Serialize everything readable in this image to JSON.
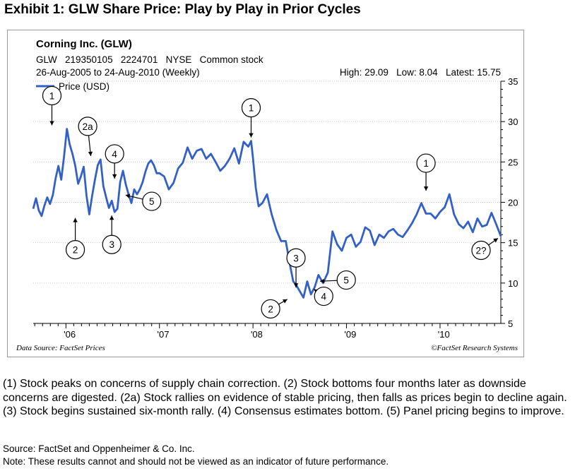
{
  "header": {
    "title": "Exhibit 1: GLW Share Price: Play by Play in Prior Cycles"
  },
  "chart_info": {
    "company": "Corning Inc. (GLW)",
    "details": "GLW   219350105   2224701   NYSE   Common stock",
    "period": "26-Aug-2005 to 24-Aug-2010 (Weekly)",
    "stats": "High: 29.09   Low: 8.04   Latest: 15.75",
    "data_source": "Data Source: FactSet Prices",
    "copyright": "©FactSet Research Systems"
  },
  "description": "(1) Stock peaks on concerns of supply chain correction. (2) Stock bottoms four months later as downside concerns are digested. (2a) Stock rallies on evidence of stable pricing, then falls as prices begin to decline again. (3) Stock begins sustained six-month rally. (4) Consensus estimates bottom. (5) Panel pricing begins to improve.",
  "footer": {
    "source": "Source: FactSet and Oppenheimer & Co. Inc.",
    "note": "Note: These results cannot and should not be viewed as an indicator of future performance."
  },
  "colors": {
    "series": "#3360c8",
    "grid": "#c8c8c8",
    "axis": "#000000"
  },
  "chart_data": {
    "type": "line",
    "grid": "horizontal dotted",
    "legend_position": "top-left",
    "ylim": [
      5,
      35
    ],
    "xlim": [
      2005.65,
      2010.65
    ],
    "y_ticks": [
      5,
      10,
      15,
      20,
      25,
      30,
      35
    ],
    "y_tick_labels": [
      "5",
      "10",
      "15",
      "20",
      "25",
      "30",
      "35"
    ],
    "x_ticks": [
      2006,
      2007,
      2008,
      2009,
      2010
    ],
    "x_tick_labels": [
      "'06",
      "'07",
      "'08",
      "'09",
      "'10"
    ],
    "series": [
      {
        "name": "Price (USD)",
        "x": [
          2005.65,
          2005.68,
          2005.71,
          2005.74,
          2005.77,
          2005.8,
          2005.83,
          2005.86,
          2005.89,
          2005.92,
          2005.95,
          2005.98,
          2006.01,
          2006.04,
          2006.07,
          2006.1,
          2006.13,
          2006.16,
          2006.19,
          2006.22,
          2006.25,
          2006.28,
          2006.31,
          2006.34,
          2006.37,
          2006.4,
          2006.43,
          2006.46,
          2006.49,
          2006.52,
          2006.55,
          2006.58,
          2006.61,
          2006.64,
          2006.67,
          2006.7,
          2006.73,
          2006.76,
          2006.79,
          2006.82,
          2006.85,
          2006.88,
          2006.91,
          2006.94,
          2006.97,
          2007.0,
          2007.05,
          2007.1,
          2007.15,
          2007.2,
          2007.25,
          2007.3,
          2007.35,
          2007.4,
          2007.45,
          2007.5,
          2007.55,
          2007.6,
          2007.65,
          2007.7,
          2007.75,
          2007.8,
          2007.85,
          2007.9,
          2007.95,
          2007.98,
          2008.0,
          2008.03,
          2008.06,
          2008.1,
          2008.15,
          2008.2,
          2008.25,
          2008.3,
          2008.35,
          2008.4,
          2008.43,
          2008.46,
          2008.5,
          2008.54,
          2008.58,
          2008.62,
          2008.66,
          2008.7,
          2008.75,
          2008.8,
          2008.85,
          2008.9,
          2008.95,
          2009.0,
          2009.05,
          2009.1,
          2009.15,
          2009.2,
          2009.25,
          2009.3,
          2009.35,
          2009.4,
          2009.45,
          2009.5,
          2009.55,
          2009.6,
          2009.65,
          2009.7,
          2009.75,
          2009.8,
          2009.85,
          2009.9,
          2009.95,
          2010.0,
          2010.05,
          2010.1,
          2010.15,
          2010.2,
          2010.25,
          2010.3,
          2010.35,
          2010.4,
          2010.45,
          2010.5,
          2010.55,
          2010.6,
          2010.65
        ],
        "values": [
          19.2,
          20.5,
          19.0,
          18.3,
          19.6,
          20.6,
          19.8,
          20.9,
          23.0,
          24.5,
          22.8,
          25.7,
          29.1,
          27.2,
          26.0,
          24.5,
          22.3,
          23.2,
          24.4,
          20.8,
          18.5,
          20.8,
          22.8,
          24.6,
          25.3,
          22.0,
          20.6,
          19.3,
          20.2,
          18.8,
          19.2,
          22.5,
          23.9,
          22.2,
          21.0,
          19.9,
          21.6,
          21.0,
          21.6,
          22.5,
          23.8,
          24.8,
          25.2,
          24.6,
          23.6,
          23.6,
          23.2,
          21.6,
          22.4,
          24.2,
          24.9,
          26.8,
          25.4,
          26.4,
          26.6,
          25.4,
          26.0,
          25.0,
          23.9,
          24.5,
          25.4,
          26.7,
          24.8,
          27.5,
          26.9,
          27.6,
          25.5,
          21.8,
          19.5,
          19.9,
          21.0,
          18.5,
          16.6,
          15.2,
          15.2,
          12.0,
          10.2,
          9.8,
          9.0,
          8.2,
          10.2,
          8.6,
          9.5,
          11.0,
          10.0,
          11.3,
          16.4,
          14.8,
          14.0,
          15.6,
          16.0,
          14.5,
          15.1,
          16.9,
          16.5,
          14.7,
          16.0,
          15.6,
          16.4,
          16.7,
          16.0,
          15.7,
          16.5,
          17.4,
          18.5,
          19.9,
          18.6,
          18.6,
          18.0,
          18.8,
          19.4,
          21.0,
          18.5,
          17.3,
          16.8,
          17.6,
          16.3,
          18.0,
          17.0,
          17.2,
          18.7,
          17.3,
          15.8
        ]
      }
    ],
    "annotations": [
      {
        "label": "1",
        "x": 2005.85,
        "y": 29.1
      },
      {
        "label": "2a",
        "x": 2006.27,
        "y": 25.3
      },
      {
        "label": "2",
        "x": 2006.1,
        "y": 18.5
      },
      {
        "label": "4",
        "x": 2006.52,
        "y": 22.5
      },
      {
        "label": "3",
        "x": 2006.49,
        "y": 18.8
      },
      {
        "label": "5",
        "x": 2006.6,
        "y": 21.0
      },
      {
        "label": "1",
        "x": 2007.98,
        "y": 27.6
      },
      {
        "label": "3",
        "x": 2008.46,
        "y": 9.0
      },
      {
        "label": "2",
        "x": 2008.4,
        "y": 8.2
      },
      {
        "label": "4",
        "x": 2008.62,
        "y": 9.5
      },
      {
        "label": "5",
        "x": 2008.68,
        "y": 10.2
      },
      {
        "label": "1",
        "x": 2009.85,
        "y": 21.0
      },
      {
        "label": "2?",
        "x": 2010.65,
        "y": 15.8
      }
    ]
  }
}
